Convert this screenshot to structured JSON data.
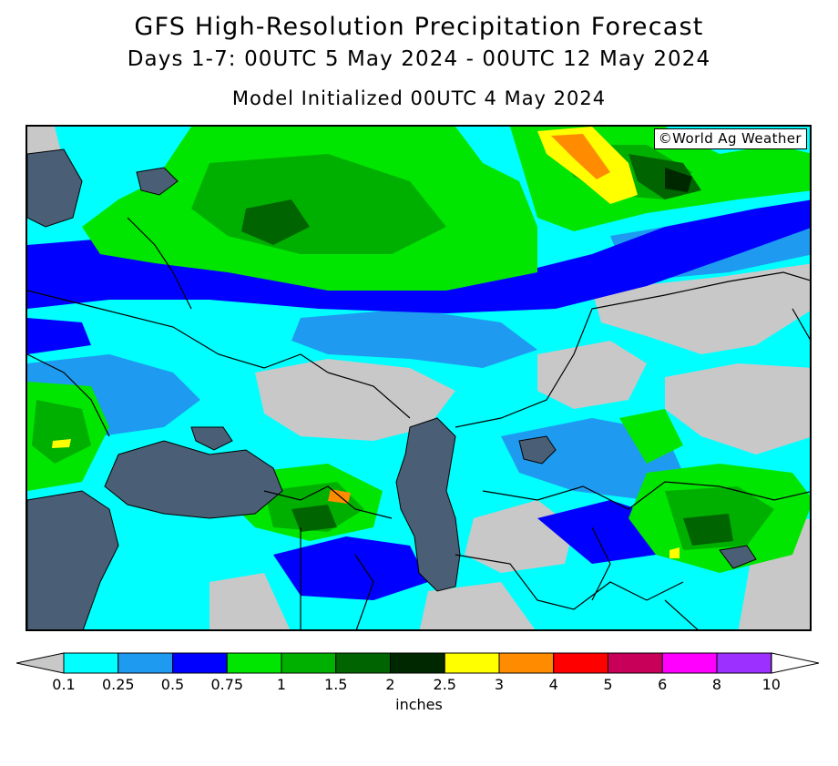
{
  "header": {
    "title": "GFS High-Resolution Precipitation Forecast",
    "subtitle": "Days 1-7: 00UTC 5 May 2024 - 00UTC 12 May 2024",
    "init": "Model Initialized 00UTC 4 May 2024"
  },
  "credit": "©World Ag Weather",
  "legend": {
    "units": "inches",
    "ticks": [
      "0.1",
      "0.25",
      "0.5",
      "0.75",
      "1",
      "1.5",
      "2",
      "2.5",
      "3",
      "4",
      "5",
      "6",
      "8",
      "10"
    ],
    "colors": [
      "#00ffff",
      "#1e9bf0",
      "#0000ff",
      "#00e600",
      "#00b000",
      "#006400",
      "#002800",
      "#ffff00",
      "#ff8c00",
      "#ff0000",
      "#c8005a",
      "#ff00ff",
      "#9b30ff"
    ],
    "below_color": "#c8c8c8",
    "above_color": "#ffffff"
  },
  "map": {
    "water_color": "#4a5f75",
    "dry_color": "#c8c8c8"
  }
}
